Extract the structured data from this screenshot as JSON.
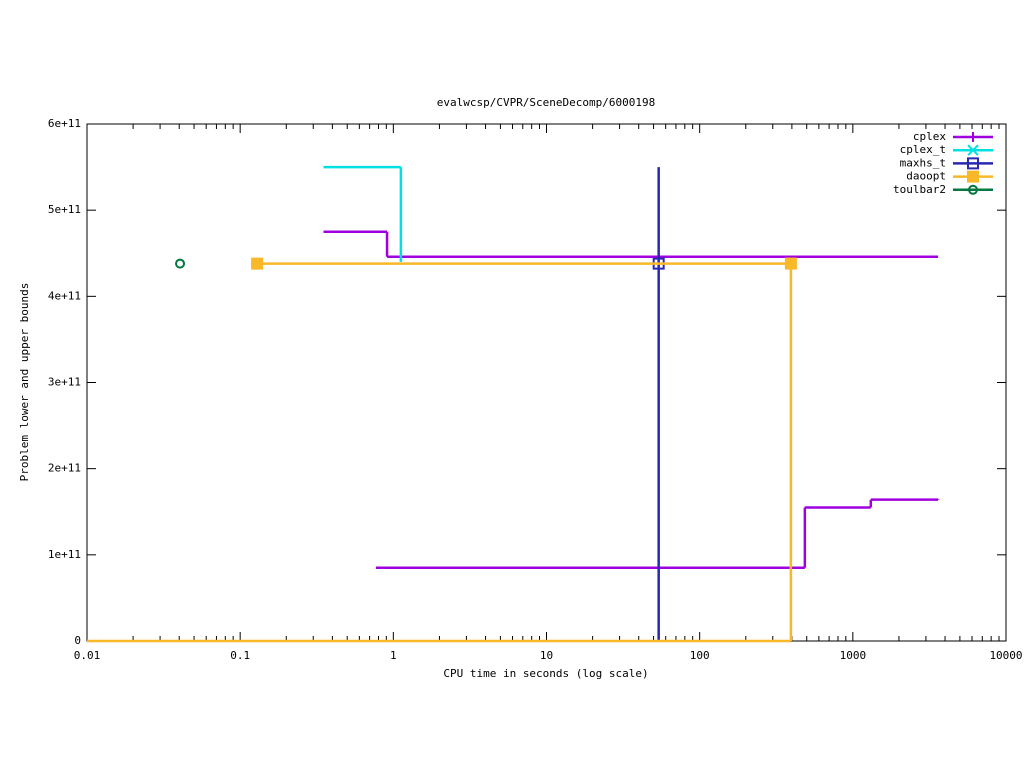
{
  "chart_data": {
    "type": "line",
    "style": "steps",
    "title": "evalwcsp/CVPR/SceneDecomp/6000198",
    "xlabel": "CPU time in seconds (log scale)",
    "ylabel": "Problem lower and upper bounds",
    "xlog": true,
    "xlim": [
      0.01,
      10000
    ],
    "xticks": [
      0.01,
      0.1,
      1,
      10,
      100,
      1000,
      10000
    ],
    "ylim": [
      0,
      600000000000
    ],
    "yticks": [
      0,
      {
        "value": 100000000000,
        "label": "1e+11"
      },
      {
        "value": 200000000000,
        "label": "2e+11"
      },
      {
        "value": 300000000000,
        "label": "3e+11"
      },
      {
        "value": 400000000000,
        "label": "4e+11"
      },
      {
        "value": 500000000000,
        "label": "5e+11"
      },
      {
        "value": 600000000000,
        "label": "6e+11"
      }
    ],
    "legend": "top-right",
    "series": [
      {
        "name": "cplex",
        "color": "#a000e0",
        "marker": "plus",
        "x": [
          0.35,
          0.91,
          3600,
          null,
          0.77,
          486,
          1310,
          3600
        ],
        "values": [
          475000000000,
          446000000000,
          446000000000,
          null,
          85000000000,
          155000000000,
          164000000000,
          165000000000
        ]
      },
      {
        "name": "cplex_t",
        "color": "#00e0e0",
        "marker": "cross",
        "x": [
          0.35,
          1.12
        ],
        "values": [
          550000000000,
          440000000000
        ]
      },
      {
        "name": "maxhs_t",
        "color": "#2828b0",
        "marker": "square-open",
        "x": [
          54,
          54
        ],
        "values": [
          550000000000,
          0
        ],
        "points": {
          "x": [
            54
          ],
          "values": [
            438000000000
          ]
        }
      },
      {
        "name": "daoopt",
        "color": "#f8b828",
        "marker": "square",
        "x": [
          0.129,
          394,
          394,
          null,
          0.01,
          394
        ],
        "values": [
          438000000000,
          438000000000,
          0,
          null,
          0,
          0
        ],
        "points": {
          "x": [
            0.129,
            394
          ],
          "values": [
            438000000000,
            438000000000
          ]
        }
      },
      {
        "name": "toulbar2",
        "color": "#007840",
        "marker": "circle-open",
        "x": [],
        "values": [],
        "points": {
          "x": [
            0.0405
          ],
          "values": [
            438000000000
          ]
        }
      }
    ]
  }
}
